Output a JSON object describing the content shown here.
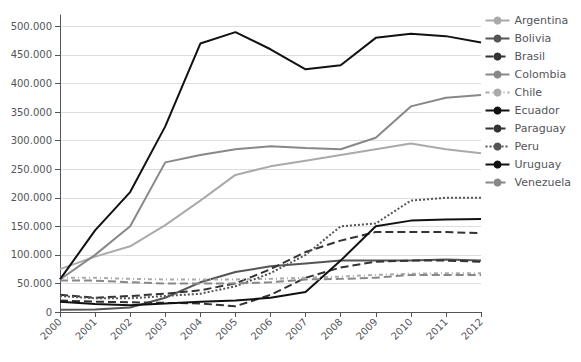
{
  "chart_data": {
    "type": "line",
    "x": [
      2000,
      2001,
      2002,
      2003,
      2004,
      2005,
      2006,
      2007,
      2008,
      2009,
      2010,
      2011,
      2012
    ],
    "xlim": [
      2000,
      2012
    ],
    "xticks": [
      2000,
      2001,
      2002,
      2003,
      2004,
      2005,
      2006,
      2007,
      2008,
      2009,
      2010,
      2011,
      2012
    ],
    "ylim": [
      0,
      520000
    ],
    "yticks": [
      0,
      {
        "value": 50000,
        "label": "50.000"
      },
      {
        "value": 100000,
        "label": "100.000"
      },
      {
        "value": 150000,
        "label": "150.000"
      },
      {
        "value": 200000,
        "label": "200.000"
      },
      {
        "value": 250000,
        "label": "250.000"
      },
      {
        "value": 300000,
        "label": "300.000"
      },
      {
        "value": 350000,
        "label": "350.000"
      },
      {
        "value": 400000,
        "label": "400.000"
      },
      {
        "value": 450000,
        "label": "450.000"
      },
      {
        "value": 500000,
        "label": "500.000"
      }
    ],
    "grid": "y",
    "legend": "right",
    "series": [
      {
        "name": "Argentina",
        "color": "#aaaaaa",
        "line_style": "solid",
        "values": [
          75000,
          97000,
          115000,
          152000,
          195000,
          240000,
          255000,
          265000,
          275000,
          285000,
          295000,
          285000,
          278000
        ]
      },
      {
        "name": "Bolivia",
        "color": "#555555",
        "line_style": "solid",
        "values": [
          4000,
          4500,
          8000,
          25000,
          52000,
          70000,
          80000,
          85000,
          90000,
          90000,
          90000,
          92000,
          90000
        ]
      },
      {
        "name": "Brasil",
        "color": "#333333",
        "line_style": "dashed",
        "values": [
          30000,
          25000,
          28000,
          32000,
          38000,
          50000,
          75000,
          105000,
          125000,
          140000,
          140000,
          140000,
          138000
        ]
      },
      {
        "name": "Colombia",
        "color": "#888888",
        "line_style": "solid",
        "values": [
          57000,
          100000,
          150000,
          262000,
          275000,
          285000,
          290000,
          287000,
          285000,
          305000,
          360000,
          375000,
          380000
        ]
      },
      {
        "name": "Chile",
        "color": "#aaaaaa",
        "line_style": "dashdot",
        "values": [
          60000,
          60000,
          58000,
          57000,
          57000,
          57000,
          58000,
          60000,
          62000,
          65000,
          67000,
          68000,
          68000
        ]
      },
      {
        "name": "Ecuador",
        "color": "#111111",
        "line_style": "solid",
        "values": [
          57000,
          143000,
          210000,
          325000,
          470000,
          490000,
          460000,
          425000,
          432000,
          480000,
          487000,
          483000,
          472000
        ]
      },
      {
        "name": "Paraguay",
        "color": "#333333",
        "line_style": "dashed",
        "values": [
          20000,
          18000,
          17000,
          16000,
          15000,
          10000,
          30000,
          60000,
          78000,
          88000,
          90000,
          90000,
          88000
        ]
      },
      {
        "name": "Peru",
        "color": "#555555",
        "line_style": "dotted",
        "values": [
          28000,
          24000,
          24000,
          28000,
          32000,
          45000,
          68000,
          100000,
          150000,
          155000,
          195000,
          200000,
          200000
        ]
      },
      {
        "name": "Uruguay",
        "color": "#111111",
        "line_style": "solid",
        "values": [
          18000,
          14000,
          12000,
          15000,
          18000,
          20000,
          25000,
          35000,
          90000,
          150000,
          160000,
          162000,
          163000
        ]
      },
      {
        "name": "Venezuela",
        "color": "#888888",
        "line_style": "dashed",
        "values": [
          55000,
          55000,
          52000,
          50000,
          50000,
          50000,
          52000,
          57000,
          58000,
          60000,
          65000,
          65000,
          65000
        ]
      }
    ]
  }
}
